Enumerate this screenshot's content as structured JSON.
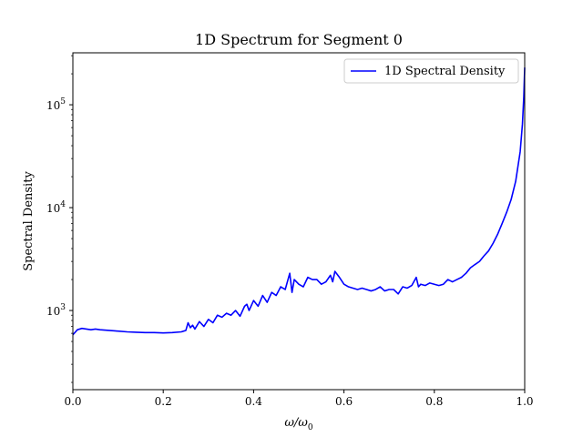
{
  "chart_data": {
    "type": "line",
    "title": "1D Spectrum for Segment 0",
    "xlabel": "ω/ω",
    "xlabel_subscript": "0",
    "ylabel": "Spectral Density",
    "xlim": [
      0.0,
      1.0
    ],
    "ylim": [
      170,
      320000
    ],
    "yscale": "log",
    "grid": false,
    "legend_position": "top-right",
    "line_color": "#0000ff",
    "x_ticks": [
      {
        "value": 0.0,
        "label": "0.0"
      },
      {
        "value": 0.2,
        "label": "0.2"
      },
      {
        "value": 0.4,
        "label": "0.4"
      },
      {
        "value": 0.6,
        "label": "0.6"
      },
      {
        "value": 0.8,
        "label": "0.8"
      },
      {
        "value": 1.0,
        "label": "1.0"
      }
    ],
    "y_ticks": [
      {
        "value": 1000,
        "base": "10",
        "exp": "3"
      },
      {
        "value": 10000,
        "base": "10",
        "exp": "4"
      },
      {
        "value": 100000,
        "base": "10",
        "exp": "5"
      }
    ],
    "series": [
      {
        "name": "1D Spectral Density",
        "x": [
          0.0,
          0.01,
          0.02,
          0.03,
          0.04,
          0.05,
          0.06,
          0.08,
          0.1,
          0.12,
          0.14,
          0.16,
          0.18,
          0.2,
          0.22,
          0.24,
          0.25,
          0.255,
          0.26,
          0.265,
          0.27,
          0.28,
          0.29,
          0.3,
          0.31,
          0.32,
          0.33,
          0.34,
          0.35,
          0.36,
          0.37,
          0.38,
          0.385,
          0.39,
          0.4,
          0.41,
          0.42,
          0.43,
          0.44,
          0.45,
          0.46,
          0.47,
          0.48,
          0.485,
          0.49,
          0.5,
          0.51,
          0.52,
          0.53,
          0.54,
          0.55,
          0.56,
          0.57,
          0.575,
          0.58,
          0.59,
          0.6,
          0.61,
          0.62,
          0.63,
          0.64,
          0.65,
          0.66,
          0.67,
          0.68,
          0.69,
          0.7,
          0.71,
          0.72,
          0.73,
          0.74,
          0.75,
          0.76,
          0.765,
          0.77,
          0.78,
          0.79,
          0.8,
          0.81,
          0.82,
          0.83,
          0.84,
          0.85,
          0.86,
          0.87,
          0.88,
          0.89,
          0.9,
          0.91,
          0.92,
          0.93,
          0.94,
          0.95,
          0.96,
          0.97,
          0.98,
          0.99,
          0.995,
          0.998,
          1.0
        ],
        "y": [
          580,
          650,
          670,
          660,
          650,
          660,
          650,
          640,
          630,
          620,
          615,
          610,
          610,
          605,
          610,
          620,
          640,
          760,
          680,
          720,
          660,
          780,
          700,
          820,
          760,
          900,
          860,
          940,
          900,
          1000,
          880,
          1100,
          1150,
          1000,
          1250,
          1100,
          1400,
          1200,
          1500,
          1400,
          1700,
          1600,
          2300,
          1500,
          2000,
          1800,
          1700,
          2100,
          2000,
          2000,
          1800,
          1900,
          2200,
          1900,
          2400,
          2100,
          1800,
          1700,
          1650,
          1600,
          1650,
          1600,
          1550,
          1600,
          1700,
          1550,
          1600,
          1600,
          1450,
          1700,
          1650,
          1750,
          2100,
          1700,
          1800,
          1750,
          1850,
          1800,
          1750,
          1800,
          2000,
          1900,
          2000,
          2100,
          2300,
          2600,
          2800,
          3000,
          3400,
          3800,
          4500,
          5500,
          7000,
          9000,
          12000,
          18000,
          35000,
          65000,
          120000,
          230000
        ]
      }
    ]
  }
}
